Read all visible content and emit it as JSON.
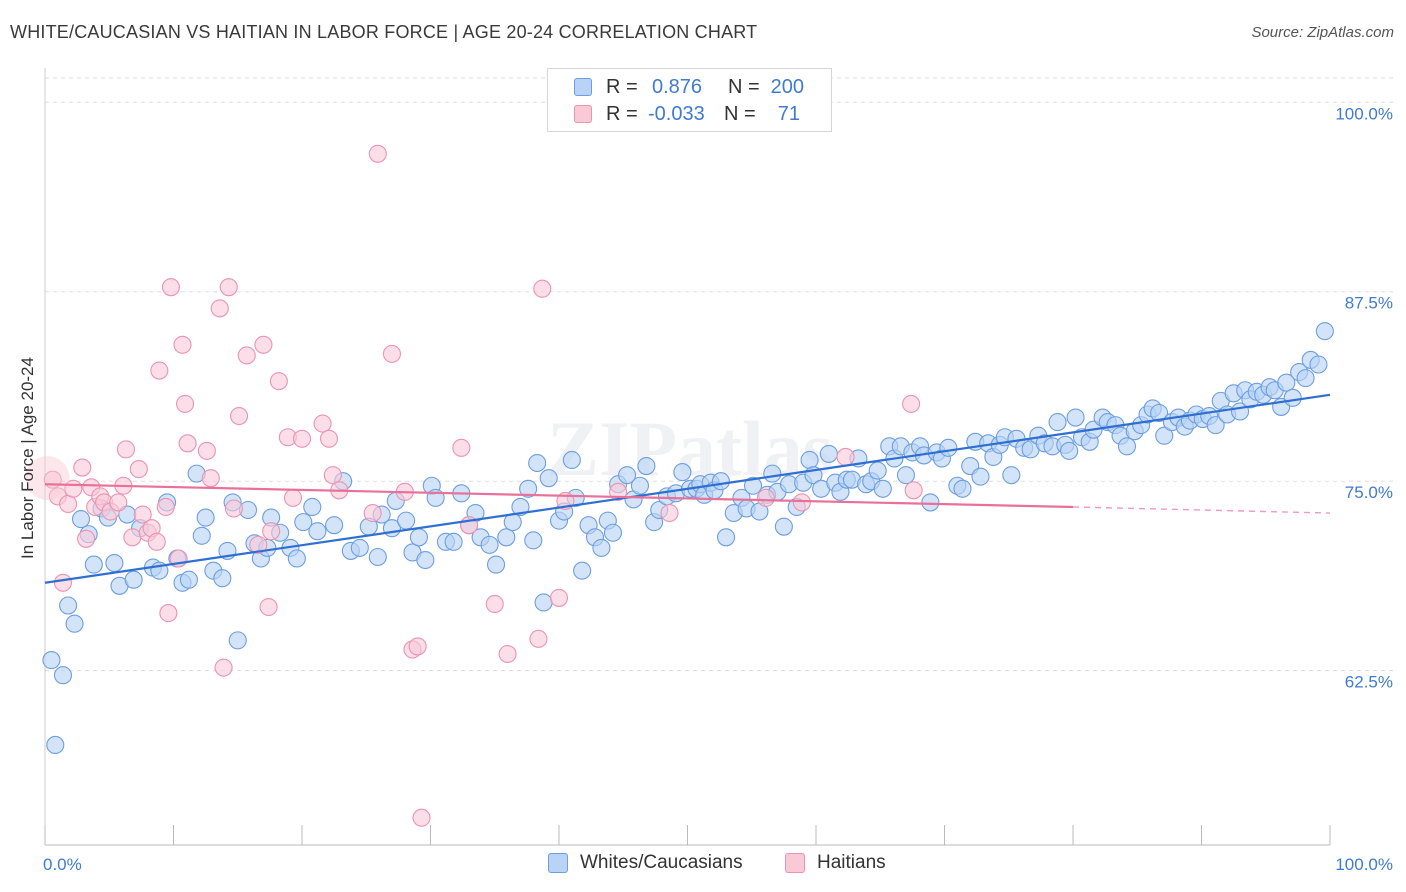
{
  "header": {
    "title": "WHITE/CAUCASIAN VS HAITIAN IN LABOR FORCE | AGE 20-24 CORRELATION CHART",
    "source": "Source: ZipAtlas.com"
  },
  "legend": {
    "rows": [
      {
        "r_label": "R =",
        "r_value": "0.876",
        "n_label": "N =",
        "n_value": "200"
      },
      {
        "r_label": "R =",
        "r_value": "-0.033",
        "n_label": "N =",
        "n_value": "71"
      }
    ]
  },
  "bottom_legend": {
    "items": [
      {
        "label": "Whites/Caucasians"
      },
      {
        "label": "Haitians"
      }
    ]
  },
  "watermark": "ZIPatlas",
  "colors": {
    "blue_fill": "#b8d3f5",
    "blue_stroke": "#6d9ee0",
    "blue_line": "#2f6fd1",
    "pink_fill": "#f9c9d8",
    "pink_stroke": "#ec93b0",
    "pink_line": "#e8719a",
    "axis_label": "#3f7bd1",
    "grid": "#dddddd"
  },
  "chart_data": {
    "type": "scatter",
    "title": "WHITE/CAUCASIAN VS HAITIAN IN LABOR FORCE | AGE 20-24 CORRELATION CHART",
    "xlabel": "",
    "ylabel": "In Labor Force | Age 20-24",
    "xlim": [
      0,
      100
    ],
    "ylim": [
      51.0,
      101.6
    ],
    "x_tick_labels": [
      "0.0%",
      "100.0%"
    ],
    "y_ticks": [
      62.5,
      75.0,
      87.5,
      100.0
    ],
    "y_tick_labels": [
      "62.5%",
      "75.0%",
      "87.5%",
      "100.0%"
    ],
    "grid": true,
    "legend_position": "top-center",
    "series": [
      {
        "name": "Whites/Caucasians",
        "r": 0.876,
        "n": 200,
        "trend": {
          "x": [
            0,
            100
          ],
          "y": [
            68.3,
            80.7
          ]
        },
        "points": [
          [
            0.5,
            63.2
          ],
          [
            0.8,
            57.6
          ],
          [
            1.4,
            62.2
          ],
          [
            1.8,
            66.8
          ],
          [
            2.3,
            65.6
          ],
          [
            2.8,
            72.5
          ],
          [
            3.4,
            71.5
          ],
          [
            3.8,
            69.5
          ],
          [
            4.4,
            73.2
          ],
          [
            4.9,
            72.6
          ],
          [
            5.4,
            69.6
          ],
          [
            5.8,
            68.1
          ],
          [
            6.4,
            72.8
          ],
          [
            6.9,
            68.5
          ],
          [
            7.4,
            71.9
          ],
          [
            8.4,
            69.3
          ],
          [
            8.9,
            69.1
          ],
          [
            9.5,
            73.6
          ],
          [
            10.3,
            69.9
          ],
          [
            10.7,
            68.3
          ],
          [
            11.2,
            68.5
          ],
          [
            11.8,
            75.5
          ],
          [
            12.2,
            71.4
          ],
          [
            12.5,
            72.6
          ],
          [
            13.1,
            69.1
          ],
          [
            13.8,
            68.6
          ],
          [
            14.2,
            70.4
          ],
          [
            14.6,
            73.6
          ],
          [
            15.0,
            64.5
          ],
          [
            15.8,
            73.1
          ],
          [
            16.3,
            70.9
          ],
          [
            16.8,
            69.9
          ],
          [
            17.3,
            70.6
          ],
          [
            17.6,
            72.6
          ],
          [
            18.3,
            71.6
          ],
          [
            19.1,
            70.6
          ],
          [
            19.6,
            69.9
          ],
          [
            20.1,
            72.3
          ],
          [
            20.8,
            73.3
          ],
          [
            21.2,
            71.7
          ],
          [
            22.5,
            72.1
          ],
          [
            23.2,
            75.0
          ],
          [
            23.8,
            70.4
          ],
          [
            24.5,
            70.6
          ],
          [
            25.2,
            72.0
          ],
          [
            25.9,
            70.0
          ],
          [
            26.2,
            72.8
          ],
          [
            27.0,
            71.9
          ],
          [
            27.3,
            73.7
          ],
          [
            28.1,
            72.4
          ],
          [
            28.6,
            70.3
          ],
          [
            29.1,
            71.3
          ],
          [
            29.6,
            69.8
          ],
          [
            30.1,
            74.7
          ],
          [
            30.4,
            73.9
          ],
          [
            31.2,
            71.0
          ],
          [
            31.8,
            71.0
          ],
          [
            32.4,
            74.2
          ],
          [
            33.0,
            72.1
          ],
          [
            33.5,
            72.9
          ],
          [
            33.9,
            71.3
          ],
          [
            34.6,
            70.8
          ],
          [
            35.1,
            69.5
          ],
          [
            35.9,
            71.3
          ],
          [
            36.4,
            72.3
          ],
          [
            37.0,
            73.3
          ],
          [
            37.6,
            74.5
          ],
          [
            38.0,
            71.1
          ],
          [
            38.3,
            76.2
          ],
          [
            38.8,
            67.0
          ],
          [
            39.2,
            75.2
          ],
          [
            40.0,
            72.4
          ],
          [
            40.4,
            73.0
          ],
          [
            41.0,
            76.4
          ],
          [
            41.3,
            73.9
          ],
          [
            41.8,
            69.1
          ],
          [
            42.3,
            72.1
          ],
          [
            42.8,
            71.3
          ],
          [
            43.3,
            70.6
          ],
          [
            43.8,
            72.4
          ],
          [
            44.2,
            71.6
          ],
          [
            44.6,
            74.8
          ],
          [
            45.3,
            75.4
          ],
          [
            45.8,
            73.8
          ],
          [
            46.3,
            74.7
          ],
          [
            46.8,
            76.0
          ],
          [
            47.4,
            72.3
          ],
          [
            47.8,
            73.1
          ],
          [
            48.4,
            74.0
          ],
          [
            49.1,
            74.2
          ],
          [
            49.6,
            75.6
          ],
          [
            50.2,
            74.5
          ],
          [
            50.7,
            74.5
          ],
          [
            51.0,
            74.8
          ],
          [
            51.3,
            74.1
          ],
          [
            51.8,
            74.9
          ],
          [
            52.1,
            74.4
          ],
          [
            52.6,
            75.0
          ],
          [
            53.0,
            71.3
          ],
          [
            53.6,
            72.9
          ],
          [
            54.2,
            73.9
          ],
          [
            54.6,
            73.2
          ],
          [
            55.1,
            74.7
          ],
          [
            55.6,
            73.0
          ],
          [
            56.2,
            74.1
          ],
          [
            56.6,
            75.5
          ],
          [
            57.0,
            74.3
          ],
          [
            57.5,
            72.0
          ],
          [
            57.9,
            74.8
          ],
          [
            58.5,
            73.3
          ],
          [
            59.0,
            74.9
          ],
          [
            59.5,
            76.4
          ],
          [
            59.8,
            75.4
          ],
          [
            60.4,
            74.5
          ],
          [
            61.0,
            76.8
          ],
          [
            61.5,
            74.9
          ],
          [
            61.9,
            74.3
          ],
          [
            62.4,
            75.1
          ],
          [
            62.8,
            75.1
          ],
          [
            63.3,
            76.5
          ],
          [
            63.9,
            74.8
          ],
          [
            64.3,
            75.0
          ],
          [
            64.8,
            75.7
          ],
          [
            65.2,
            74.5
          ],
          [
            65.7,
            77.3
          ],
          [
            66.1,
            76.5
          ],
          [
            66.6,
            77.3
          ],
          [
            67.0,
            75.4
          ],
          [
            67.5,
            76.9
          ],
          [
            68.1,
            77.3
          ],
          [
            68.4,
            76.7
          ],
          [
            68.9,
            73.6
          ],
          [
            69.4,
            76.9
          ],
          [
            69.8,
            76.5
          ],
          [
            70.3,
            77.2
          ],
          [
            71.0,
            74.7
          ],
          [
            71.4,
            74.5
          ],
          [
            72.0,
            76.0
          ],
          [
            72.4,
            77.6
          ],
          [
            72.8,
            75.3
          ],
          [
            73.4,
            77.5
          ],
          [
            73.8,
            76.6
          ],
          [
            74.3,
            77.4
          ],
          [
            74.7,
            77.9
          ],
          [
            75.2,
            75.4
          ],
          [
            75.6,
            77.8
          ],
          [
            76.2,
            77.2
          ],
          [
            76.7,
            77.1
          ],
          [
            77.3,
            78.0
          ],
          [
            77.8,
            77.5
          ],
          [
            78.4,
            77.3
          ],
          [
            78.8,
            78.9
          ],
          [
            79.4,
            77.4
          ],
          [
            79.7,
            77.0
          ],
          [
            80.2,
            79.2
          ],
          [
            80.7,
            77.9
          ],
          [
            81.3,
            77.6
          ],
          [
            81.6,
            78.4
          ],
          [
            82.3,
            79.2
          ],
          [
            82.7,
            78.9
          ],
          [
            83.3,
            78.7
          ],
          [
            83.7,
            78.0
          ],
          [
            84.2,
            77.3
          ],
          [
            84.8,
            78.3
          ],
          [
            85.3,
            78.7
          ],
          [
            85.8,
            79.4
          ],
          [
            86.2,
            79.8
          ],
          [
            86.7,
            79.5
          ],
          [
            87.1,
            78.0
          ],
          [
            87.7,
            78.9
          ],
          [
            88.2,
            79.2
          ],
          [
            88.7,
            78.6
          ],
          [
            89.1,
            79.0
          ],
          [
            89.6,
            79.4
          ],
          [
            90.1,
            79.1
          ],
          [
            90.6,
            79.3
          ],
          [
            91.1,
            78.7
          ],
          [
            91.5,
            80.3
          ],
          [
            92.0,
            79.4
          ],
          [
            92.5,
            80.8
          ],
          [
            93.0,
            79.6
          ],
          [
            93.4,
            81.0
          ],
          [
            93.8,
            80.4
          ],
          [
            94.3,
            80.9
          ],
          [
            94.8,
            80.7
          ],
          [
            95.3,
            81.2
          ],
          [
            95.7,
            81.0
          ],
          [
            96.2,
            79.9
          ],
          [
            96.6,
            81.5
          ],
          [
            97.1,
            80.5
          ],
          [
            97.6,
            82.2
          ],
          [
            98.1,
            81.8
          ],
          [
            98.5,
            83.0
          ],
          [
            99.1,
            82.7
          ],
          [
            99.6,
            84.9
          ]
        ]
      },
      {
        "name": "Haitians",
        "r": -0.033,
        "n": 71,
        "trend": {
          "x": [
            0,
            80
          ],
          "y": [
            74.8,
            73.3
          ]
        },
        "trend_extension": {
          "x": [
            80,
            100
          ],
          "y": [
            73.3,
            72.9
          ]
        },
        "points": [
          [
            0.6,
            75.1
          ],
          [
            1.0,
            74.0
          ],
          [
            1.4,
            68.3
          ],
          [
            1.8,
            73.5
          ],
          [
            2.2,
            74.5
          ],
          [
            2.9,
            75.9
          ],
          [
            3.2,
            71.2
          ],
          [
            3.6,
            74.6
          ],
          [
            3.9,
            73.3
          ],
          [
            4.3,
            74.0
          ],
          [
            4.6,
            73.6
          ],
          [
            5.1,
            73.0
          ],
          [
            5.7,
            73.6
          ],
          [
            6.1,
            74.7
          ],
          [
            6.3,
            77.1
          ],
          [
            6.8,
            71.3
          ],
          [
            7.3,
            75.8
          ],
          [
            7.6,
            72.8
          ],
          [
            8.0,
            71.6
          ],
          [
            8.3,
            71.9
          ],
          [
            8.7,
            71.0
          ],
          [
            8.9,
            82.3
          ],
          [
            9.4,
            73.3
          ],
          [
            9.6,
            66.3
          ],
          [
            9.8,
            87.8
          ],
          [
            10.4,
            69.9
          ],
          [
            10.7,
            84.0
          ],
          [
            10.9,
            80.1
          ],
          [
            11.1,
            77.5
          ],
          [
            12.6,
            77.0
          ],
          [
            12.9,
            75.2
          ],
          [
            13.6,
            86.4
          ],
          [
            13.9,
            62.7
          ],
          [
            14.3,
            87.8
          ],
          [
            14.7,
            73.2
          ],
          [
            15.1,
            79.3
          ],
          [
            15.7,
            83.3
          ],
          [
            16.6,
            70.8
          ],
          [
            17.0,
            84.0
          ],
          [
            17.4,
            66.7
          ],
          [
            17.6,
            71.7
          ],
          [
            18.2,
            81.6
          ],
          [
            18.9,
            77.9
          ],
          [
            19.3,
            73.9
          ],
          [
            20.0,
            77.8
          ],
          [
            21.6,
            78.8
          ],
          [
            22.1,
            77.8
          ],
          [
            22.4,
            75.4
          ],
          [
            22.9,
            74.4
          ],
          [
            25.9,
            96.6
          ],
          [
            25.5,
            72.9
          ],
          [
            27.0,
            83.4
          ],
          [
            28.0,
            74.3
          ],
          [
            28.6,
            63.9
          ],
          [
            29.0,
            64.1
          ],
          [
            29.3,
            52.8
          ],
          [
            32.4,
            77.2
          ],
          [
            33.0,
            72.1
          ],
          [
            35.0,
            66.9
          ],
          [
            36.0,
            63.6
          ],
          [
            38.4,
            64.6
          ],
          [
            38.7,
            87.7
          ],
          [
            40.0,
            67.3
          ],
          [
            40.5,
            73.7
          ],
          [
            44.6,
            74.3
          ],
          [
            48.6,
            72.9
          ],
          [
            56.1,
            73.9
          ],
          [
            58.9,
            73.6
          ],
          [
            62.3,
            76.6
          ],
          [
            67.6,
            74.4
          ],
          [
            67.4,
            80.1
          ]
        ]
      }
    ]
  }
}
